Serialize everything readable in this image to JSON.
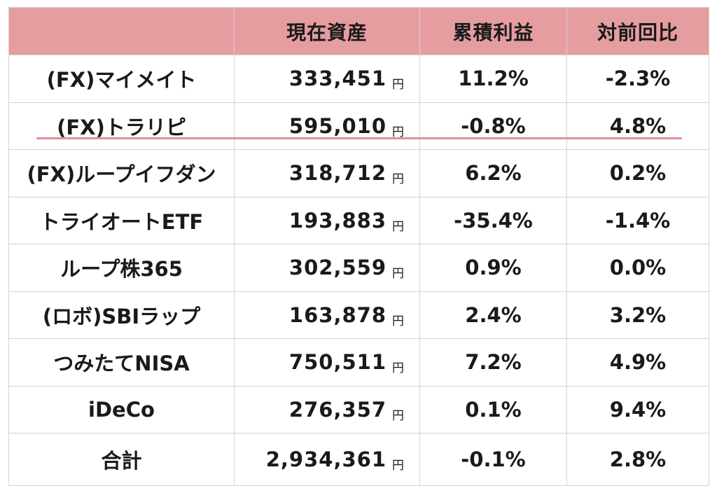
{
  "table": {
    "headers": [
      "",
      "現在資産",
      "累積利益",
      "対前回比"
    ],
    "currency_unit": "円",
    "rows": [
      {
        "name": "(FX)マイメイト",
        "amount": "333,451",
        "cum_profit": "11.2%",
        "change": "-2.3%"
      },
      {
        "name": "(FX)トラリピ",
        "amount": "595,010",
        "cum_profit": "-0.8%",
        "change": "4.8%"
      },
      {
        "name": "(FX)ループイフダン",
        "amount": "318,712",
        "cum_profit": "6.2%",
        "change": "0.2%"
      },
      {
        "name": "トライオートETF",
        "amount": "193,883",
        "cum_profit": "-35.4%",
        "change": "-1.4%"
      },
      {
        "name": "ループ株365",
        "amount": "302,559",
        "cum_profit": "0.9%",
        "change": "0.0%"
      },
      {
        "name": "(ロボ)SBIラップ",
        "amount": "163,878",
        "cum_profit": "2.4%",
        "change": "3.2%"
      },
      {
        "name": "つみたてNISA",
        "amount": "750,511",
        "cum_profit": "7.2%",
        "change": "4.9%"
      },
      {
        "name": "iDeCo",
        "amount": "276,357",
        "cum_profit": "0.1%",
        "change": "9.4%"
      },
      {
        "name": "合計",
        "amount": "2,934,361",
        "cum_profit": "-0.1%",
        "change": "2.8%"
      }
    ]
  },
  "colors": {
    "header_background": "#e59d9f",
    "underline": "#e28f96",
    "grid": "#d2d2d2"
  }
}
